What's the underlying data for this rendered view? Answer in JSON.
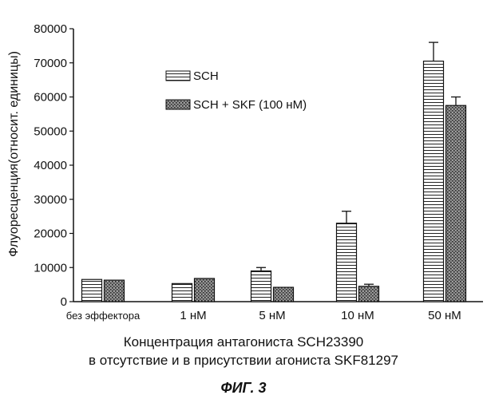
{
  "chart_data": {
    "type": "bar",
    "title": "",
    "ylabel": "Флуоресценция(относит. единицы)",
    "xlabel_lines": [
      "Концентрация антагониста SCH23390",
      "в отсутствие и в присутствии агониста SKF81297"
    ],
    "categories": [
      "без эффектора",
      "1 нМ",
      "5 нМ",
      "10 нМ",
      "50 нМ"
    ],
    "ylim": [
      0,
      80000
    ],
    "yticks": [
      0,
      10000,
      20000,
      30000,
      40000,
      50000,
      60000,
      70000,
      80000
    ],
    "legend_position": "top-left",
    "series": [
      {
        "name": "SCH",
        "values": [
          6500,
          5300,
          9000,
          23000,
          70500
        ],
        "errors": [
          0,
          0,
          1000,
          3500,
          5500
        ]
      },
      {
        "name": "SCH + SKF (100 нМ)",
        "values": [
          6300,
          6800,
          4200,
          4500,
          57500
        ],
        "errors": [
          0,
          0,
          0,
          600,
          2500
        ]
      }
    ]
  },
  "figure_label": "ФИГ. 3"
}
